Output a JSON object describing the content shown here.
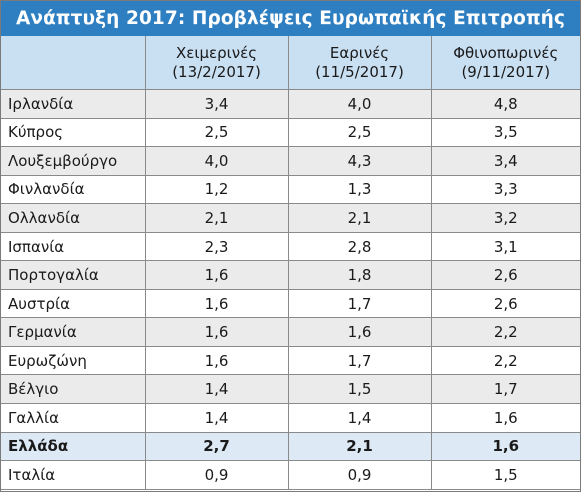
{
  "title": "Ανάπτυξη 2017: Προβλέψεις Ευρωπαϊκής Επιτροπής",
  "columns": [
    {
      "line1": "Χειμερινές",
      "line2": "(13/2/2017)"
    },
    {
      "line1": "Εαρινές",
      "line2": "(11/5/2017)"
    },
    {
      "line1": "Φθινοπωρινές",
      "line2": "(9/11/2017)"
    }
  ],
  "rows": [
    {
      "country": "Ιρλανδία",
      "winter": "3,4",
      "spring": "4,0",
      "autumn": "4,8"
    },
    {
      "country": "Κύπρος",
      "winter": "2,5",
      "spring": "2,5",
      "autumn": "3,5"
    },
    {
      "country": "Λουξεμβούργο",
      "winter": "4,0",
      "spring": "4,3",
      "autumn": "3,4"
    },
    {
      "country": "Φινλανδία",
      "winter": "1,2",
      "spring": "1,3",
      "autumn": "3,3"
    },
    {
      "country": "Ολλανδία",
      "winter": "2,1",
      "spring": "2,1",
      "autumn": "3,2"
    },
    {
      "country": "Ισπανία",
      "winter": "2,3",
      "spring": "2,8",
      "autumn": "3,1"
    },
    {
      "country": "Πορτογαλία",
      "winter": "1,6",
      "spring": "1,8",
      "autumn": "2,6"
    },
    {
      "country": "Αυστρία",
      "winter": "1,6",
      "spring": "1,7",
      "autumn": "2,6"
    },
    {
      "country": "Γερμανία",
      "winter": "1,6",
      "spring": "1,6",
      "autumn": "2,2"
    },
    {
      "country": "Ευρωζώνη",
      "winter": "1,6",
      "spring": "1,7",
      "autumn": "2,2"
    },
    {
      "country": "Βέλγιο",
      "winter": "1,4",
      "spring": "1,5",
      "autumn": "1,7"
    },
    {
      "country": "Γαλλία",
      "winter": "1,4",
      "spring": "1,4",
      "autumn": "1,6"
    },
    {
      "country": "Ελλάδα",
      "winter": "2,7",
      "spring": "2,1",
      "autumn": "1,6",
      "highlight": true
    },
    {
      "country": "Ιταλία",
      "winter": "0,9",
      "spring": "0,9",
      "autumn": "1,5"
    }
  ],
  "colors": {
    "title_bg": "#2e7fc1",
    "header_bg": "#c9dff2",
    "row_alt_bg": "#ebebeb",
    "highlight_bg": "#dde9f5"
  }
}
